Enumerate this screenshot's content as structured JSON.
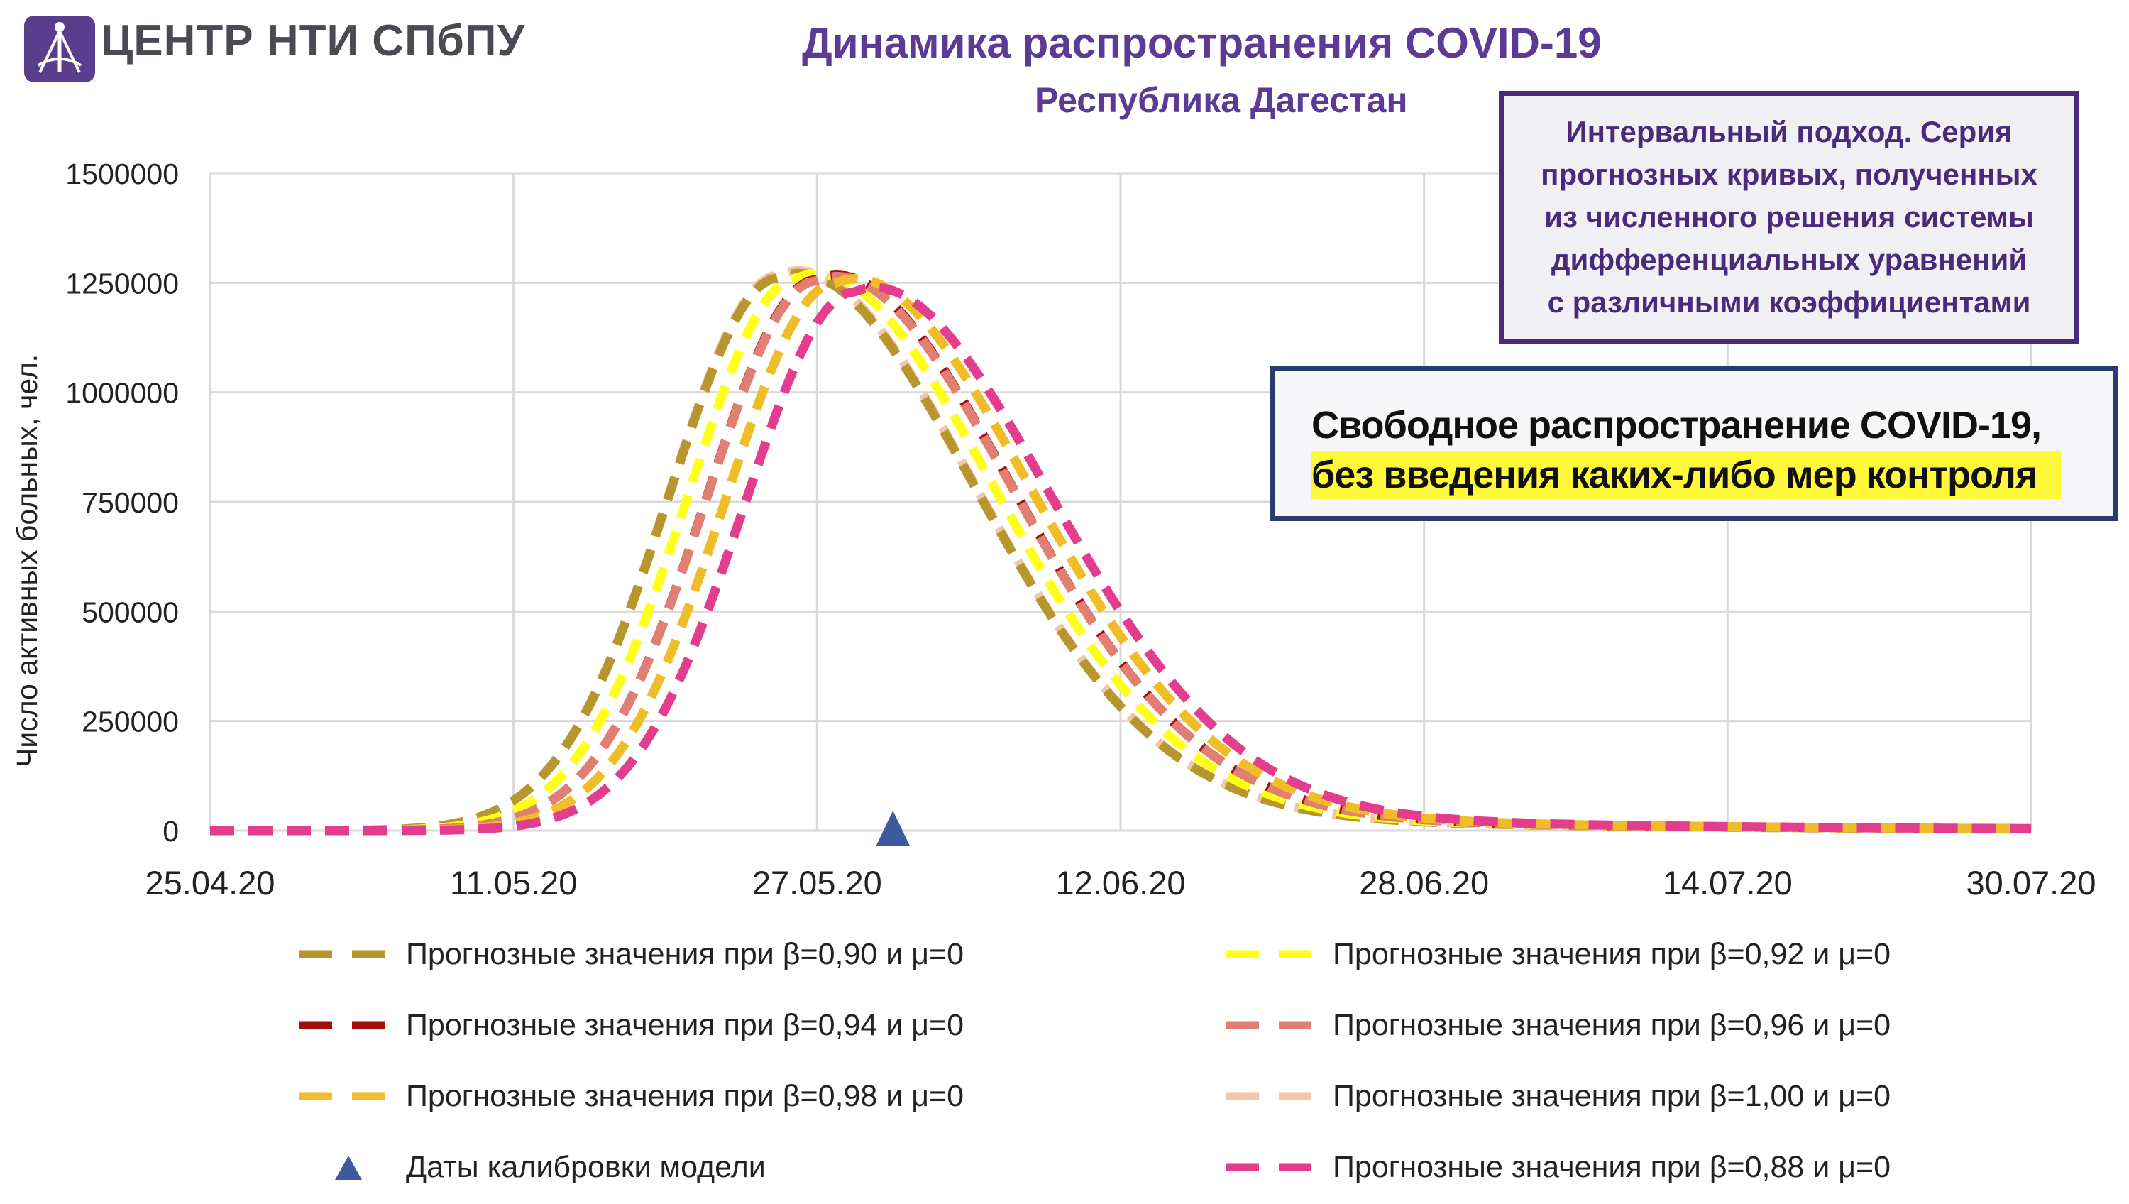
{
  "header": {
    "logo_text": "ЦЕНТР НТИ СПбПУ",
    "title": "Динамика распространения COVID-19",
    "subtitle": "Республика Дагестан"
  },
  "note": {
    "text": "Интервальный подход. Серия\nпрогнозных кривых, полученных\nиз численного решения системы\nдифференциальных уравнений\nс различными коэффициентами"
  },
  "scenario": {
    "line1": "Свободное распространение COVID-19,",
    "line2": "без введения каких-либо мер контроля"
  },
  "colors": {
    "title": "#5b3b96",
    "grid": "#d9d9d9",
    "marker": "#3d5aa0"
  },
  "chart_data": {
    "type": "line",
    "ylabel": "Число активных больных, чел.",
    "xlabel": "",
    "x_ticks": [
      "25.04.20",
      "11.05.20",
      "27.05.20",
      "12.06.20",
      "28.06.20",
      "14.07.20",
      "30.07.20"
    ],
    "x_range": [
      "25.04.20",
      "30.07.20"
    ],
    "ylim": [
      0,
      1500000
    ],
    "y_ticks": [
      "0",
      "250000",
      "500000",
      "750000",
      "1000000",
      "1250000",
      "1500000"
    ],
    "grid": true,
    "legend_position": "bottom",
    "line_style": "dashed",
    "series": [
      {
        "name": "Прогнозные значения при β=0,90 и μ=0",
        "color": "#b8962e",
        "peak_date": "25.05.20",
        "peak": 1262000,
        "rise": 5.8,
        "decay": 10.0
      },
      {
        "name": "Прогнозные значения при β=0,92 и μ=0",
        "color": "#ffff1a",
        "peak_date": "26.05.20",
        "peak": 1262000,
        "rise": 5.8,
        "decay": 10.0
      },
      {
        "name": "Прогнозные значения при β=0,94 и μ=0",
        "color": "#a50e0e",
        "peak_date": "27.05.20",
        "peak": 1258000,
        "rise": 5.8,
        "decay": 10.0
      },
      {
        "name": "Прогнозные значения при β=0,96 и μ=0",
        "color": "#e07f72",
        "peak_date": "27.05.20",
        "peak": 1255000,
        "rise": 5.8,
        "decay": 10.0
      },
      {
        "name": "Прогнозные значения при β=0,98 и μ=0",
        "color": "#f0bd28",
        "peak_date": "28.05.20",
        "peak": 1250000,
        "rise": 5.8,
        "decay": 10.0
      },
      {
        "name": "Прогнозные значения при β=1,00 и μ=0",
        "color": "#f2c6a8",
        "peak_date": "25.05.20",
        "peak": 1268000,
        "rise": 5.8,
        "decay": 10.0
      },
      {
        "name": "Прогнозные значения при β=0,88 и μ=0",
        "color": "#e43d8e",
        "peak_date": "29.05.20",
        "peak": 1230000,
        "rise": 5.8,
        "decay": 10.0
      }
    ],
    "markers": [
      {
        "name": "Даты калибровки модели",
        "date": "31.05.20",
        "value": 0,
        "shape": "triangle",
        "color": "#3d5aa0"
      }
    ],
    "legend": [
      {
        "label": "Прогнозные значения при β=0,90 и μ=0",
        "color": "#b8962e",
        "kind": "dash"
      },
      {
        "label": "Прогнозные значения при β=0,92 и μ=0",
        "color": "#ffff1a",
        "kind": "dash"
      },
      {
        "label": "Прогнозные значения при β=0,94 и μ=0",
        "color": "#a50e0e",
        "kind": "dash"
      },
      {
        "label": "Прогнозные значения при β=0,96 и μ=0",
        "color": "#e07f72",
        "kind": "dash"
      },
      {
        "label": "Прогнозные значения при β=0,98 и μ=0",
        "color": "#f0bd28",
        "kind": "dash"
      },
      {
        "label": "Прогнозные значения при β=1,00 и μ=0",
        "color": "#f2c6a8",
        "kind": "dash"
      },
      {
        "label": "Даты калибровки модели",
        "color": "#3d5aa0",
        "kind": "triangle"
      },
      {
        "label": "Прогнозные значения при β=0,88 и μ=0",
        "color": "#e43d8e",
        "kind": "dash"
      }
    ]
  }
}
